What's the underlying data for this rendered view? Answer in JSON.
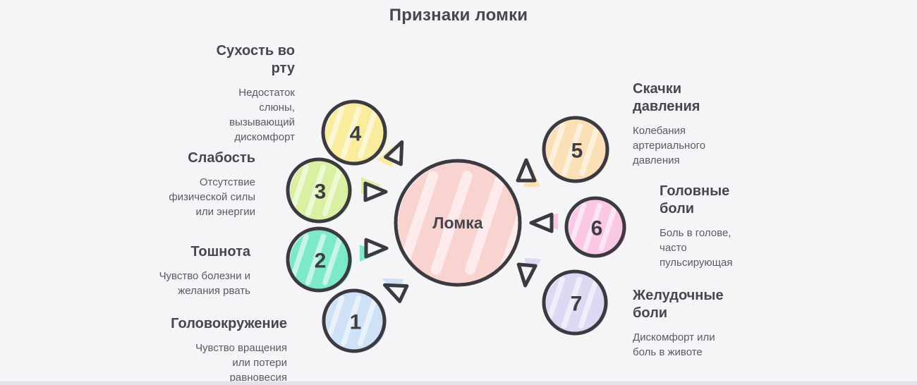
{
  "title": "Признаки ломки",
  "center": {
    "label": "Ломка",
    "color": "#f9d3d0"
  },
  "nodes": [
    {
      "number": "1",
      "color": "#cfe1f6"
    },
    {
      "number": "2",
      "color": "#7ee9c8"
    },
    {
      "number": "3",
      "color": "#d9f0a3"
    },
    {
      "number": "4",
      "color": "#f9ec9f"
    },
    {
      "number": "5",
      "color": "#fbdfb6"
    },
    {
      "number": "6",
      "color": "#fac8e5"
    },
    {
      "number": "7",
      "color": "#dfd8f5"
    }
  ],
  "labels": [
    {
      "heading": "Сухость во рту",
      "desc": "Недостаток слюны, вызывающий дискомфорт"
    },
    {
      "heading": "Слабость",
      "desc": "Отсутствие физической силы или энергии"
    },
    {
      "heading": "Тошнота",
      "desc": "Чувство болезни и желания рвать"
    },
    {
      "heading": "Головокружение",
      "desc": "Чувство вращения или потери равновесия"
    },
    {
      "heading": "Скачки давления",
      "desc": "Колебания артериального давления"
    },
    {
      "heading": "Головные боли",
      "desc": "Боль в голове, часто пульсирующая"
    },
    {
      "heading": "Желудочные боли",
      "desc": "Дискомфорт или боль в животе"
    }
  ],
  "colors": {
    "background": "#f5f5f8",
    "outline": "#3a3a40",
    "heading_text": "#46464e",
    "desc_text": "#595b62",
    "number_text": "#3d3d44"
  }
}
